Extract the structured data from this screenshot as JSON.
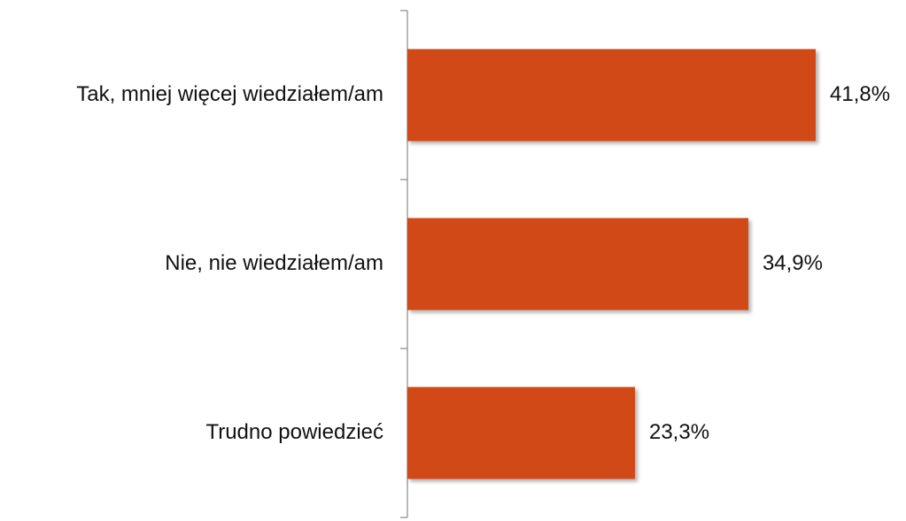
{
  "chart_data": {
    "type": "barh",
    "categories": [
      "Tak, mniej więcej wiedziałem/am",
      "Nie, nie wiedziałem/am",
      "Trudno powiedzieć"
    ],
    "values": [
      41.8,
      34.9,
      23.3
    ],
    "value_labels": [
      "41,8%",
      "34,9%",
      "23,3%"
    ],
    "color": "#d04817"
  }
}
